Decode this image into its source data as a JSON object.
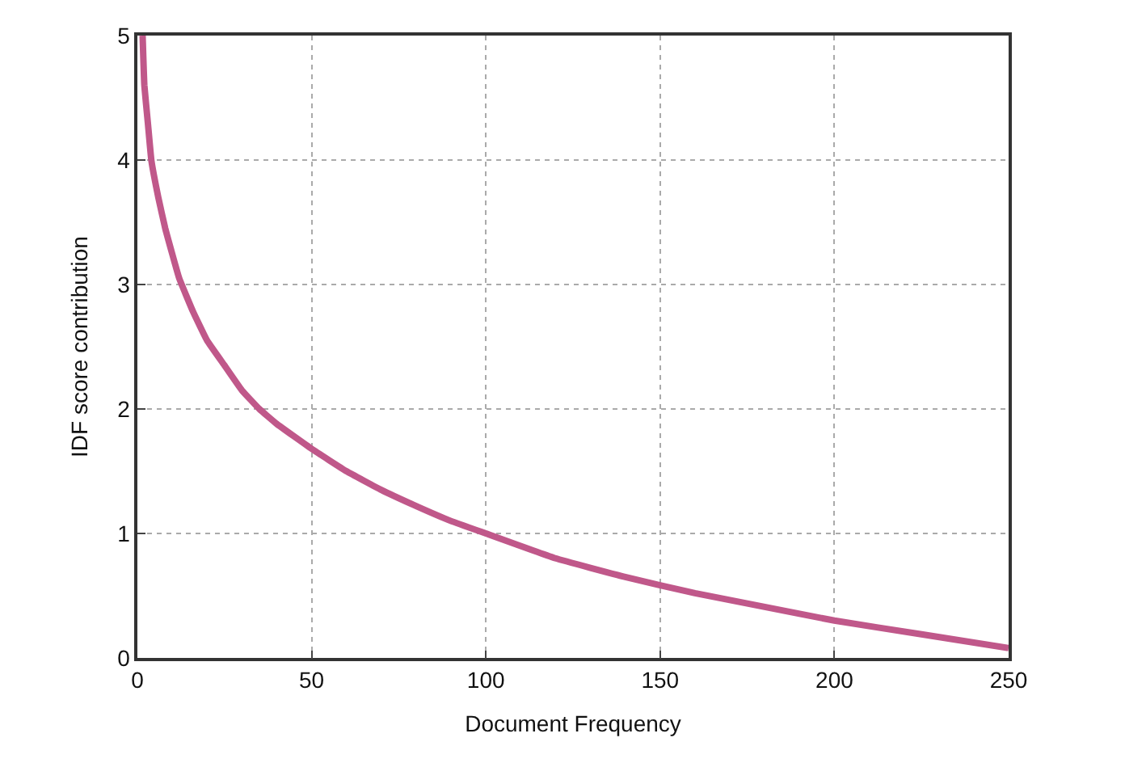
{
  "chart_data": {
    "type": "line",
    "xlabel": "Document Frequency",
    "ylabel": "IDF score contribution",
    "x": [
      1.5,
      2,
      3,
      4,
      6,
      8,
      12,
      16,
      20,
      25,
      30,
      35,
      40,
      50,
      60,
      70,
      80,
      90,
      100,
      120,
      140,
      160,
      180,
      200,
      225,
      250
    ],
    "series": [
      {
        "color": "#c0588a",
        "values": [
          5.0,
          4.6,
          4.3,
          4.0,
          3.7,
          3.45,
          3.05,
          2.78,
          2.55,
          2.35,
          2.15,
          2.0,
          1.88,
          1.68,
          1.5,
          1.35,
          1.22,
          1.1,
          1.0,
          0.8,
          0.65,
          0.52,
          0.41,
          0.3,
          0.19,
          0.08
        ]
      }
    ],
    "xlim": [
      0,
      250
    ],
    "xticks": [
      0,
      50,
      100,
      150,
      200,
      250
    ],
    "ylim": [
      0,
      5
    ],
    "yticks": [
      0,
      1,
      2,
      3,
      4,
      5
    ],
    "grid": true,
    "marker": "none",
    "line_style": "solid"
  }
}
